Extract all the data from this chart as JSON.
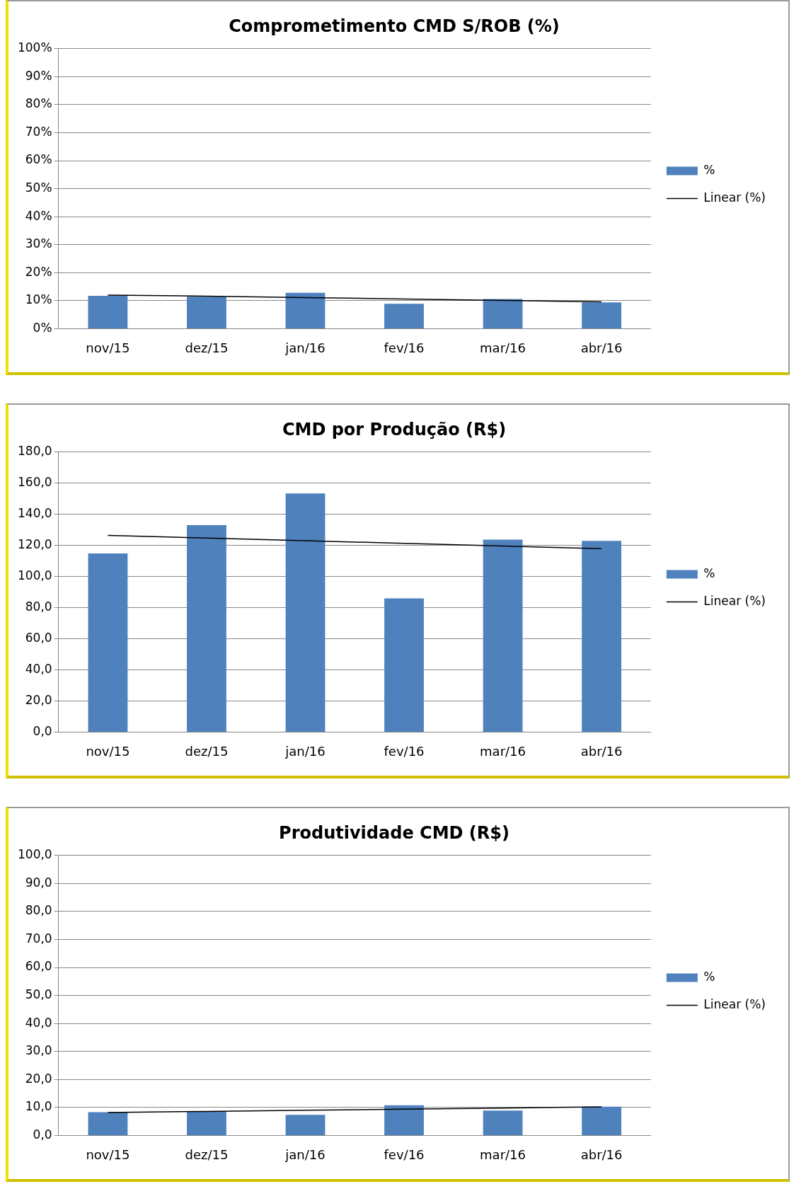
{
  "chart_data": [
    {
      "type": "bar",
      "title": "Comprometimento CMD S/ROB (%)",
      "categories": [
        "nov/15",
        "dez/15",
        "jan/16",
        "fev/16",
        "mar/16",
        "abr/16"
      ],
      "series": [
        {
          "name": "%",
          "color": "#4f81bd",
          "values": [
            11.7,
            11.4,
            12.8,
            8.9,
            10.6,
            9.4
          ]
        },
        {
          "name": "Linear (%)",
          "type": "line",
          "color": "#000000",
          "values": [
            12.0,
            11.6,
            11.1,
            10.6,
            10.1,
            9.6
          ]
        }
      ],
      "ylim": [
        0,
        100
      ],
      "yticks": [
        {
          "value": 0,
          "label": "0%"
        },
        {
          "value": 10,
          "label": "10%"
        },
        {
          "value": 20,
          "label": "20%"
        },
        {
          "value": 30,
          "label": "30%"
        },
        {
          "value": 40,
          "label": "40%"
        },
        {
          "value": 50,
          "label": "50%"
        },
        {
          "value": 60,
          "label": "60%"
        },
        {
          "value": 70,
          "label": "70%"
        },
        {
          "value": 80,
          "label": "80%"
        },
        {
          "value": 90,
          "label": "90%"
        },
        {
          "value": 100,
          "label": "100%"
        }
      ],
      "grid": "y",
      "legend": "right",
      "marker": "none"
    },
    {
      "type": "bar",
      "title": "CMD por Produção (R$)",
      "categories": [
        "nov/15",
        "dez/15",
        "jan/16",
        "fev/16",
        "mar/16",
        "abr/16"
      ],
      "series": [
        {
          "name": "%",
          "color": "#4f81bd",
          "values": [
            114.9,
            133.1,
            153.4,
            86.0,
            123.7,
            122.9
          ]
        },
        {
          "name": "Linear (%)",
          "type": "line",
          "color": "#000000",
          "values": [
            126.4,
            124.7,
            123.0,
            121.3,
            119.6,
            117.9
          ]
        }
      ],
      "ylim": [
        0,
        180
      ],
      "yticks": [
        {
          "value": 0,
          "label": "0,0"
        },
        {
          "value": 20,
          "label": "20,0"
        },
        {
          "value": 40,
          "label": "40,0"
        },
        {
          "value": 60,
          "label": "60,0"
        },
        {
          "value": 80,
          "label": "80,0"
        },
        {
          "value": 100,
          "label": "100,0"
        },
        {
          "value": 120,
          "label": "120,0"
        },
        {
          "value": 140,
          "label": "140,0"
        },
        {
          "value": 160,
          "label": "160,0"
        },
        {
          "value": 180,
          "label": "180,0"
        }
      ],
      "grid": "y",
      "legend": "right",
      "marker": "none"
    },
    {
      "type": "bar",
      "title": "Produtividade CMD (R$)",
      "categories": [
        "nov/15",
        "dez/15",
        "jan/16",
        "fev/16",
        "mar/16",
        "abr/16"
      ],
      "series": [
        {
          "name": "%",
          "color": "#4f81bd",
          "values": [
            8.3,
            8.5,
            7.4,
            10.8,
            8.9,
            10.3
          ]
        },
        {
          "name": "Linear (%)",
          "type": "line",
          "color": "#000000",
          "values": [
            8.2,
            8.6,
            9.0,
            9.4,
            9.8,
            10.2
          ]
        }
      ],
      "ylim": [
        0,
        100
      ],
      "yticks": [
        {
          "value": 0,
          "label": "0,0"
        },
        {
          "value": 10,
          "label": "10,0"
        },
        {
          "value": 20,
          "label": "20,0"
        },
        {
          "value": 30,
          "label": "30,0"
        },
        {
          "value": 40,
          "label": "40,0"
        },
        {
          "value": 50,
          "label": "50,0"
        },
        {
          "value": 60,
          "label": "60,0"
        },
        {
          "value": 70,
          "label": "70,0"
        },
        {
          "value": 80,
          "label": "80,0"
        },
        {
          "value": 90,
          "label": "90,0"
        },
        {
          "value": 100,
          "label": "100,0"
        }
      ],
      "grid": "y",
      "legend": "right",
      "marker": "none"
    }
  ]
}
